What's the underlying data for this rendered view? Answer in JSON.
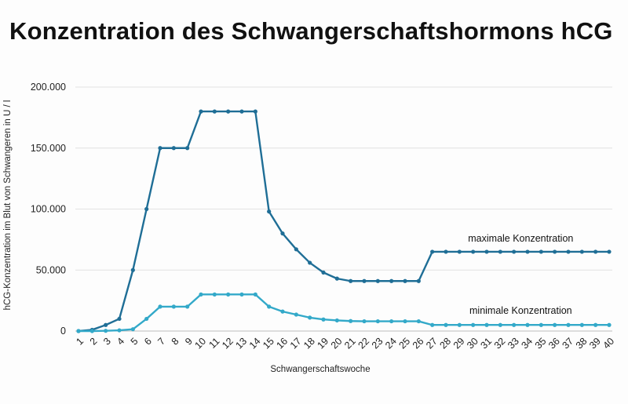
{
  "chart_data": {
    "type": "line",
    "title": "Konzentration des Schwangerschaftshormons hCG",
    "xlabel": "Schwangerschaftswoche",
    "ylabel": "hCG-Konzentration im Blut von Schwangeren in U / l",
    "ylim": [
      0,
      200000
    ],
    "yticks": [
      0,
      50000,
      100000,
      150000,
      200000
    ],
    "ytick_labels": [
      "0",
      "50.000",
      "100.000",
      "150.000",
      "200.000"
    ],
    "grid": "horizontal",
    "x": [
      1,
      2,
      3,
      4,
      5,
      6,
      7,
      8,
      9,
      10,
      11,
      12,
      13,
      14,
      15,
      16,
      17,
      18,
      19,
      20,
      21,
      22,
      23,
      24,
      25,
      26,
      27,
      28,
      29,
      30,
      31,
      32,
      33,
      34,
      35,
      36,
      37,
      38,
      39,
      40
    ],
    "series": [
      {
        "name": "maximale Konzentration",
        "color": "#1f6e96",
        "values": [
          0,
          1000,
          5000,
          10000,
          50000,
          100000,
          150000,
          150000,
          150000,
          180000,
          180000,
          180000,
          180000,
          180000,
          98000,
          80000,
          67000,
          56000,
          48000,
          43000,
          41000,
          41000,
          41000,
          41000,
          41000,
          41000,
          65000,
          65000,
          65000,
          65000,
          65000,
          65000,
          65000,
          65000,
          65000,
          65000,
          65000,
          65000,
          65000,
          65000
        ]
      },
      {
        "name": "minimale Konzentration",
        "color": "#33a9c9",
        "values": [
          0,
          0,
          200,
          600,
          1500,
          10000,
          20000,
          20000,
          20000,
          30000,
          30000,
          30000,
          30000,
          30000,
          20000,
          16000,
          13500,
          11000,
          9500,
          8700,
          8200,
          8000,
          8000,
          8000,
          8000,
          8000,
          5000,
          5000,
          5000,
          5000,
          5000,
          5000,
          5000,
          5000,
          5000,
          5000,
          5000,
          5000,
          5000,
          5000
        ]
      }
    ]
  }
}
